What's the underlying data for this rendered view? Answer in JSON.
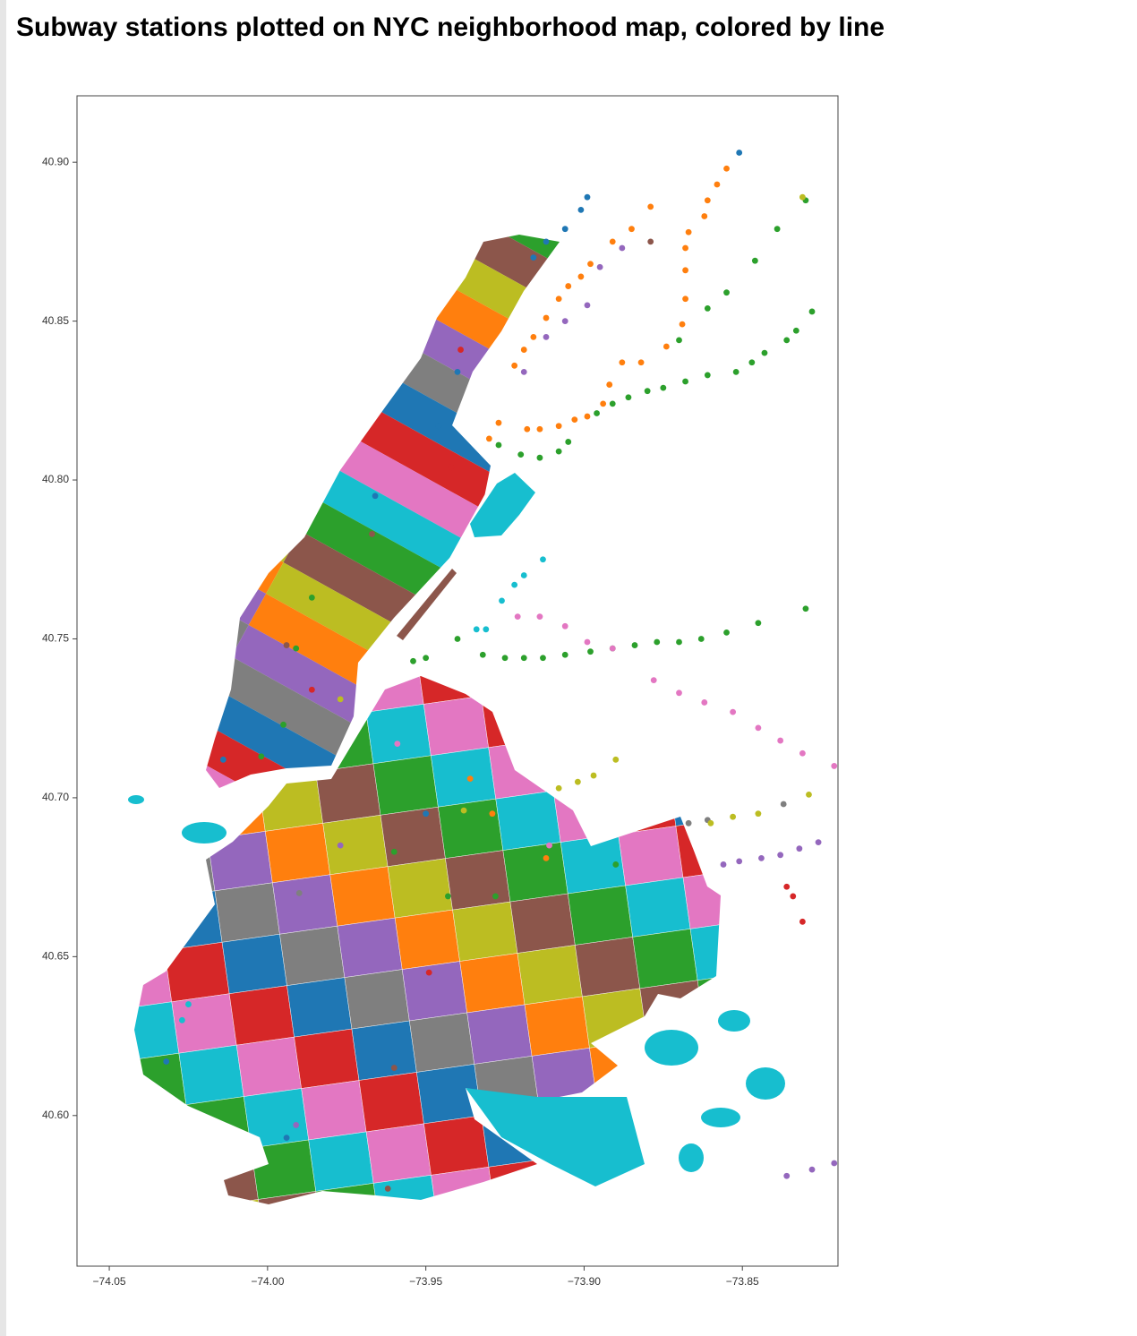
{
  "chart_data": {
    "type": "scatter",
    "title": "Subway stations plotted on NYC neighborhood map, colored by line",
    "xlim": [
      -74.0602,
      -73.8198
    ],
    "ylim": [
      40.5526,
      40.9209
    ],
    "xticks": [
      {
        "value": -74.05,
        "label": "−74.05"
      },
      {
        "value": -74.0,
        "label": "−74.00"
      },
      {
        "value": -73.95,
        "label": "−73.95"
      },
      {
        "value": -73.9,
        "label": "−73.90"
      },
      {
        "value": -73.85,
        "label": "−73.85"
      }
    ],
    "yticks": [
      {
        "value": 40.6,
        "label": "40.60"
      },
      40.65,
      {
        "value": 40.7,
        "label": "40.70"
      },
      40.75,
      {
        "value": 40.8,
        "label": "40.80"
      },
      40.85,
      {
        "value": 40.9,
        "label": "40.90"
      }
    ],
    "series": [
      {
        "color": "#1f77b4",
        "x": [
          -73.851,
          -73.899,
          -73.901,
          -73.906,
          -73.912,
          -73.916,
          -73.94,
          -73.946,
          -73.966,
          -74.014,
          -73.95,
          -74.032,
          -73.994
        ],
        "y": [
          40.903,
          40.889,
          40.885,
          40.879,
          40.875,
          40.87,
          40.834,
          40.817,
          40.795,
          40.712,
          40.695,
          40.617,
          40.593
        ]
      },
      {
        "color": "#ff7f0e",
        "x": [
          -73.855,
          -73.858,
          -73.861,
          -73.862,
          -73.867,
          -73.868,
          -73.868,
          -73.868,
          -73.869,
          -73.874,
          -73.882,
          -73.888,
          -73.892,
          -73.894,
          -73.899,
          -73.903,
          -73.908,
          -73.914,
          -73.918,
          -73.927,
          -73.93,
          -73.879,
          -73.885,
          -73.891,
          -73.898,
          -73.901,
          -73.905,
          -73.908,
          -73.912,
          -73.916,
          -73.919,
          -73.922,
          -73.936,
          -73.929,
          -73.912
        ],
        "y": [
          40.898,
          40.893,
          40.888,
          40.883,
          40.878,
          40.873,
          40.866,
          40.857,
          40.849,
          40.842,
          40.837,
          40.837,
          40.83,
          40.824,
          40.82,
          40.819,
          40.817,
          40.816,
          40.816,
          40.818,
          40.813,
          40.886,
          40.879,
          40.875,
          40.868,
          40.864,
          40.861,
          40.857,
          40.851,
          40.845,
          40.841,
          40.836,
          40.706,
          40.695,
          40.681
        ]
      },
      {
        "color": "#2ca02c",
        "x": [
          -73.83,
          -73.839,
          -73.846,
          -73.855,
          -73.861,
          -73.87,
          -73.828,
          -73.833,
          -73.836,
          -73.843,
          -73.847,
          -73.852,
          -73.861,
          -73.868,
          -73.875,
          -73.88,
          -73.886,
          -73.891,
          -73.896,
          -73.905,
          -73.908,
          -73.914,
          -73.92,
          -73.927,
          -73.83,
          -73.845,
          -73.855,
          -73.863,
          -73.87,
          -73.877,
          -73.884,
          -73.891,
          -73.898,
          -73.906,
          -73.913,
          -73.919,
          -73.925,
          -73.932,
          -73.94,
          -73.95,
          -73.954,
          -73.986,
          -73.991,
          -73.995,
          -74.002,
          -73.96,
          -73.943,
          -73.928,
          -73.89
        ],
        "y": [
          40.888,
          40.879,
          40.869,
          40.859,
          40.854,
          40.844,
          40.853,
          40.847,
          40.844,
          40.84,
          40.837,
          40.834,
          40.833,
          40.831,
          40.829,
          40.828,
          40.826,
          40.824,
          40.821,
          40.812,
          40.809,
          40.807,
          40.808,
          40.811,
          40.7595,
          40.755,
          40.752,
          40.75,
          40.749,
          40.749,
          40.748,
          40.747,
          40.746,
          40.745,
          40.744,
          40.744,
          40.744,
          40.745,
          40.75,
          40.744,
          40.743,
          40.763,
          40.747,
          40.723,
          40.713,
          40.683,
          40.669,
          40.669,
          40.679
        ]
      },
      {
        "color": "#d62728",
        "x": [
          -73.836,
          -73.834,
          -73.831,
          -73.942,
          -73.939,
          -73.986,
          -73.949
        ],
        "y": [
          40.672,
          40.669,
          40.661,
          40.804,
          40.841,
          40.734,
          40.645
        ]
      },
      {
        "color": "#9467bd",
        "x": [
          -73.888,
          -73.895,
          -73.899,
          -73.906,
          -73.912,
          -73.919,
          -73.856,
          -73.851,
          -73.844,
          -73.838,
          -73.832,
          -73.826,
          -73.836,
          -73.828,
          -73.821,
          -73.977,
          -73.991
        ],
        "y": [
          40.873,
          40.867,
          40.855,
          40.85,
          40.845,
          40.834,
          40.679,
          40.68,
          40.681,
          40.682,
          40.684,
          40.686,
          40.581,
          40.583,
          40.585,
          40.685,
          40.597
        ]
      },
      {
        "color": "#8c564b",
        "x": [
          -73.879,
          -73.967,
          -73.994,
          -73.96,
          -73.962
        ],
        "y": [
          40.875,
          40.783,
          40.748,
          40.615,
          40.577
        ]
      },
      {
        "color": "#e377c2",
        "x": [
          -73.921,
          -73.914,
          -73.906,
          -73.899,
          -73.891,
          -73.878,
          -73.87,
          -73.862,
          -73.853,
          -73.845,
          -73.838,
          -73.831,
          -73.821,
          -73.959,
          -73.911
        ],
        "y": [
          40.757,
          40.757,
          40.754,
          40.749,
          40.747,
          40.737,
          40.733,
          40.73,
          40.727,
          40.722,
          40.718,
          40.714,
          40.71,
          40.717,
          40.685
        ]
      },
      {
        "color": "#7f7f7f",
        "x": [
          -73.837,
          -73.861,
          -73.867,
          -73.99
        ],
        "y": [
          40.698,
          40.693,
          40.692,
          40.67
        ]
      },
      {
        "color": "#bcbd22",
        "x": [
          -73.831,
          -73.89,
          -73.897,
          -73.902,
          -73.908,
          -73.829,
          -73.845,
          -73.853,
          -73.86,
          -73.977,
          -73.938
        ],
        "y": [
          40.889,
          40.712,
          40.707,
          40.705,
          40.703,
          40.701,
          40.695,
          40.694,
          40.692,
          40.731,
          40.696
        ]
      },
      {
        "color": "#17becf",
        "x": [
          -73.913,
          -73.919,
          -73.922,
          -73.926,
          -73.931,
          -73.934,
          -74.025,
          -74.027
        ],
        "y": [
          40.775,
          40.77,
          40.767,
          40.762,
          40.753,
          40.753,
          40.635,
          40.63
        ]
      }
    ]
  }
}
